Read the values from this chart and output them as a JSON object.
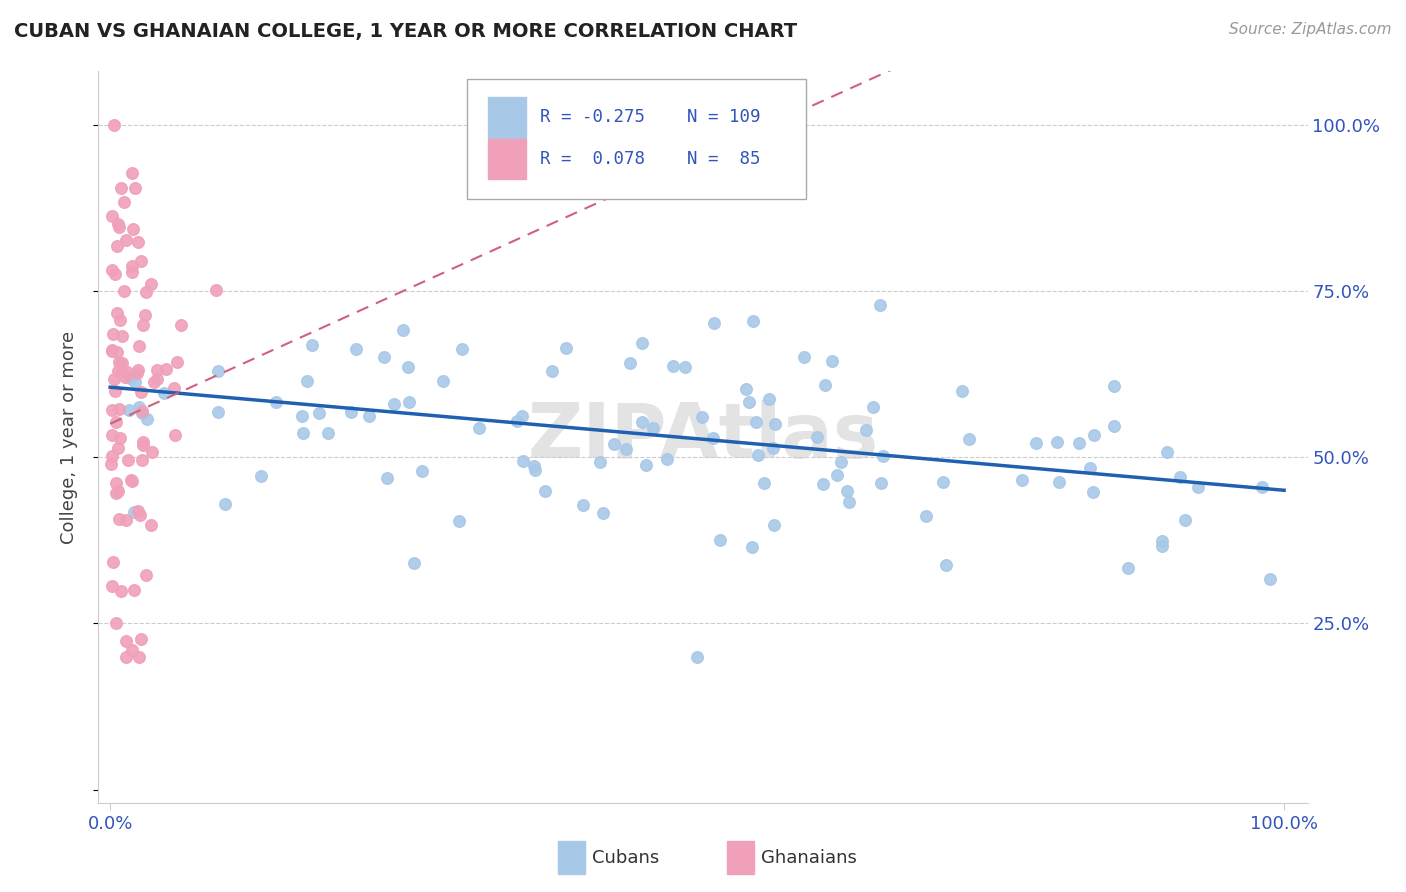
{
  "title": "CUBAN VS GHANAIAN COLLEGE, 1 YEAR OR MORE CORRELATION CHART",
  "source_text": "Source: ZipAtlas.com",
  "ylabel": "College, 1 year or more",
  "legend_cubans": "Cubans",
  "legend_ghanaians": "Ghanaians",
  "R_cubans": -0.275,
  "N_cubans": 109,
  "R_ghanaians": 0.078,
  "N_ghanaians": 85,
  "cubans_color": "#a8c8e8",
  "ghanaians_color": "#f0a0b8",
  "cubans_line_color": "#2060b0",
  "ghanaians_line_color": "#d06080",
  "watermark": "ZIPAtlas",
  "title_fontsize": 14,
  "axis_label_fontsize": 13,
  "tick_fontsize": 13,
  "legend_fontsize": 13
}
